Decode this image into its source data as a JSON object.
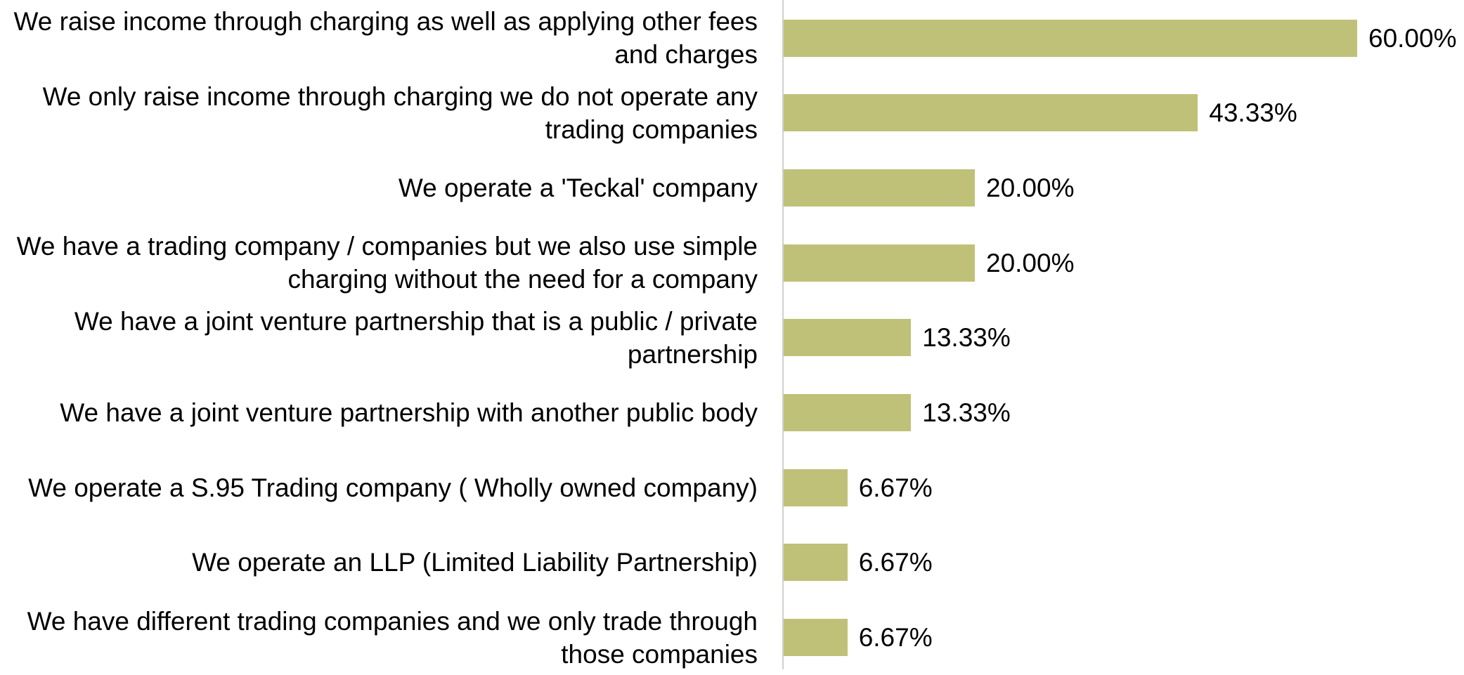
{
  "chart_data": {
    "type": "bar",
    "orientation": "horizontal",
    "color": "#bfc178",
    "categories": [
      "We raise income through charging as well as applying other fees and charges",
      "We only raise income through charging we do not operate any trading companies",
      "We operate a 'Teckal' company",
      "We have a trading company / companies but we also use simple charging without the need for a company",
      "We have a joint venture partnership that is a public / private partnership",
      "We have a joint venture partnership with another public body",
      "We operate a S.95 Trading company ( Wholly owned company)",
      "We operate an LLP (Limited Liability Partnership)",
      "We have different trading companies and we only trade through those  companies"
    ],
    "values": [
      60,
      43.33,
      20,
      20,
      13.33,
      13.33,
      6.67,
      6.67,
      6.67
    ],
    "value_labels": [
      "60.00%",
      "43.33%",
      "20.00%",
      "20.00%",
      "13.33%",
      "13.33%",
      "6.67%",
      "6.67%",
      "6.67%"
    ]
  }
}
